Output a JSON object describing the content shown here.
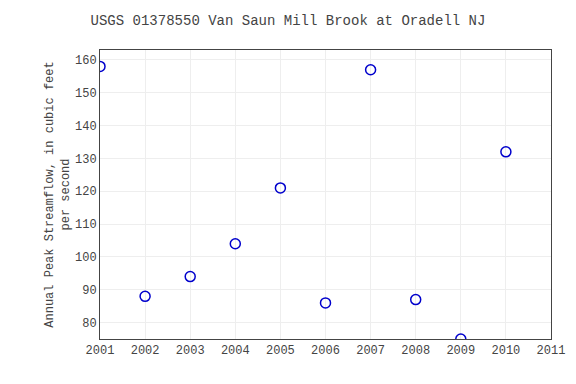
{
  "chart_data": {
    "type": "scatter",
    "title": "USGS 01378550 Van Saun Mill Brook at Oradell NJ",
    "ylabel": "Annual Peak Streamflow, in cubic feet\nper second",
    "x": [
      2001,
      2002,
      2003,
      2004,
      2005,
      2006,
      2007,
      2008,
      2009,
      2010
    ],
    "values": [
      158,
      88,
      94,
      104,
      121,
      86,
      157,
      87,
      75,
      132
    ],
    "xlim": [
      2001,
      2011
    ],
    "ylim": [
      75,
      163
    ],
    "xticks": [
      2001,
      2002,
      2003,
      2004,
      2005,
      2006,
      2007,
      2008,
      2009,
      2010,
      2011
    ],
    "yticks": [
      80,
      90,
      100,
      110,
      120,
      130,
      140,
      150,
      160
    ],
    "color": "#0000cc",
    "marker": "circle-open",
    "grid": true
  }
}
